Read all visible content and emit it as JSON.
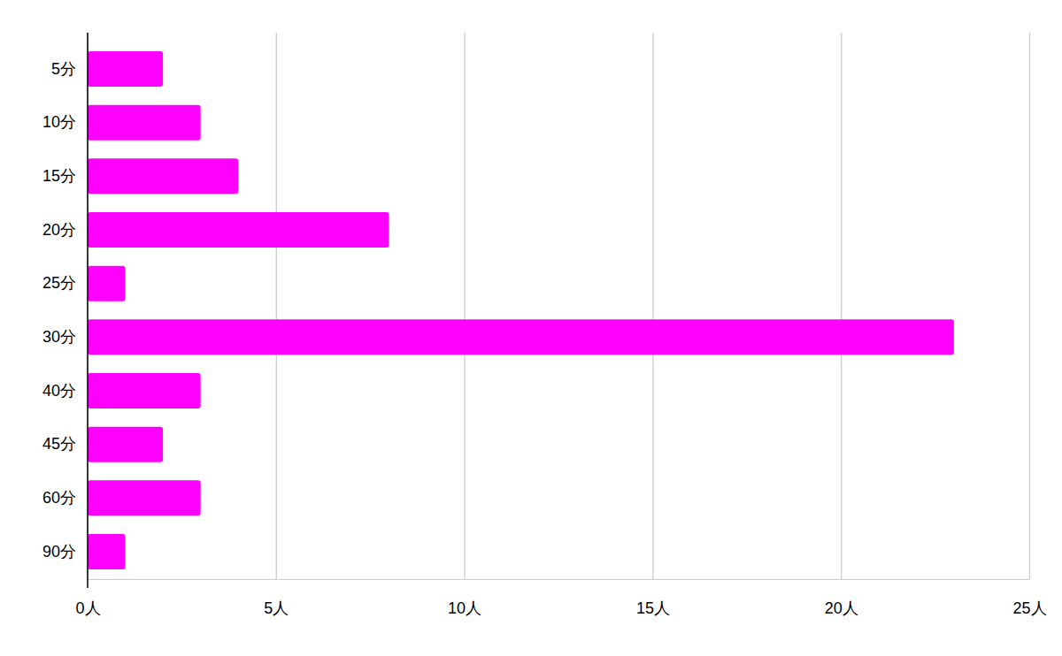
{
  "chart_data": {
    "type": "bar",
    "orientation": "horizontal",
    "categories": [
      "5分",
      "10分",
      "15分",
      "20分",
      "25分",
      "30分",
      "40分",
      "45分",
      "60分",
      "90分"
    ],
    "values": [
      2,
      3,
      4,
      8,
      1,
      23,
      3,
      2,
      3,
      1
    ],
    "color": "#ff00ff",
    "xlim": [
      0,
      25
    ],
    "xticks": [
      {
        "value": 0,
        "label": "0人"
      },
      {
        "value": 5,
        "label": "5人"
      },
      {
        "value": 10,
        "label": "10人"
      },
      {
        "value": 15,
        "label": "15人"
      },
      {
        "value": 20,
        "label": "20人"
      },
      {
        "value": 25,
        "label": "25人"
      }
    ],
    "grid": true
  }
}
